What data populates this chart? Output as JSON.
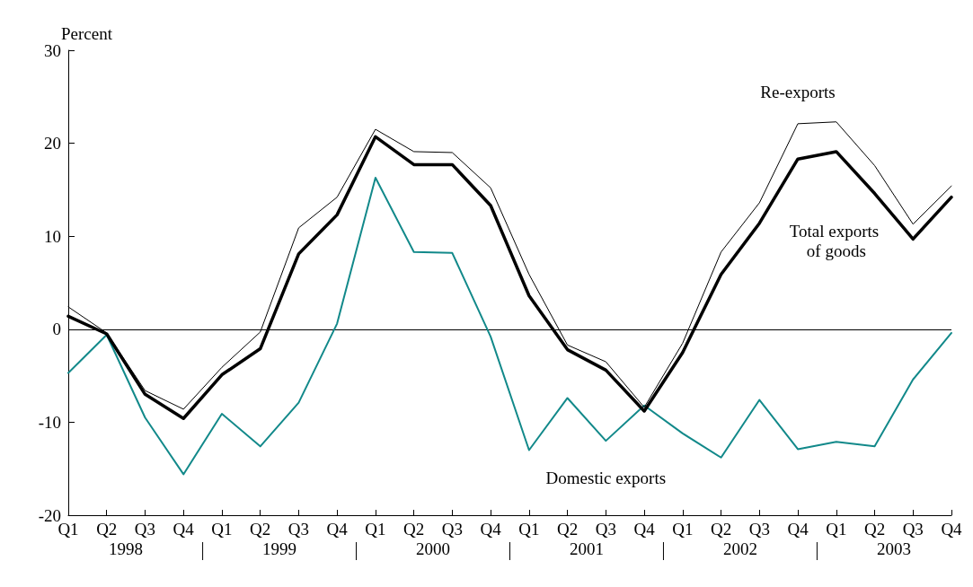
{
  "chart_data": {
    "type": "line",
    "ylabel": "Percent",
    "categories": [
      "Q1",
      "Q2",
      "Q3",
      "Q4",
      "Q1",
      "Q2",
      "Q3",
      "Q4",
      "Q1",
      "Q2",
      "Q3",
      "Q4",
      "Q1",
      "Q2",
      "Q3",
      "Q4",
      "Q1",
      "Q2",
      "Q3",
      "Q4",
      "Q1",
      "Q2",
      "Q3",
      "Q4"
    ],
    "series": [
      {
        "name": "Re-exports",
        "color": "#000000",
        "values": [
          2.4,
          -0.4,
          -6.6,
          -8.6,
          -4.1,
          -0.3,
          10.9,
          14.2,
          21.5,
          19.1,
          19.0,
          15.2,
          5.9,
          -1.7,
          -3.5,
          -8.4,
          -1.5,
          8.3,
          13.6,
          22.1,
          22.3,
          17.6,
          11.3,
          15.4
        ]
      },
      {
        "name": "Total exports of goods",
        "color": "#000000",
        "values": [
          1.4,
          -0.5,
          -7.0,
          -9.6,
          -4.9,
          -2.1,
          8.1,
          12.3,
          20.7,
          17.7,
          17.7,
          13.3,
          3.6,
          -2.2,
          -4.4,
          -8.8,
          -2.5,
          5.9,
          11.4,
          18.3,
          19.1,
          14.6,
          9.7,
          14.2
        ]
      },
      {
        "name": "Domestic exports",
        "color": "#12898a",
        "values": [
          -4.7,
          -0.6,
          -9.5,
          -15.6,
          -9.1,
          -12.6,
          -7.9,
          0.6,
          16.3,
          8.3,
          8.2,
          -0.8,
          -13.0,
          -7.4,
          -12.0,
          -8.2,
          -11.2,
          -13.8,
          -7.6,
          -12.9,
          -12.1,
          -12.6,
          -5.4,
          -0.4
        ]
      }
    ],
    "annotations": [
      "1998",
      "1999",
      "2000",
      "2001",
      "2002",
      "2003"
    ],
    "ylim": [
      -20,
      30
    ],
    "yticks": [
      -20,
      -10,
      0,
      10,
      20,
      30
    ],
    "ref_lines": [
      {
        "axis": "y",
        "value": 0,
        "color": "#000000"
      }
    ],
    "grid": false,
    "legend": false,
    "marker": "none",
    "line_style": "solid"
  }
}
